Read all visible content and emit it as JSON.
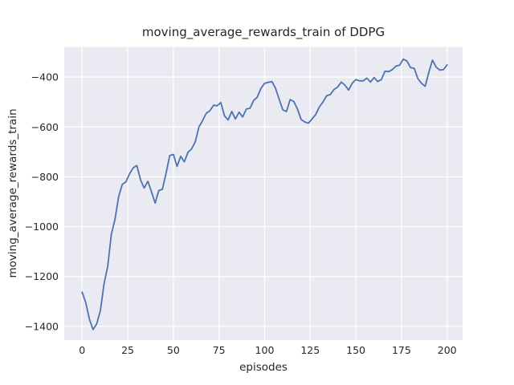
{
  "figure": {
    "title": "moving_average_rewards_train of DDPG",
    "xlabel": "episodes",
    "ylabel": "moving_average_rewards_train"
  },
  "chart_data": {
    "type": "line",
    "title": "moving_average_rewards_train of DDPG",
    "xlabel": "episodes",
    "ylabel": "moving_average_rewards_train",
    "grid": true,
    "legend_position": "none",
    "line_color": "#4c72b0",
    "plot_background": "#eaeaf2",
    "grid_color": "#ffffff",
    "text_color": "#262626",
    "xlim": [
      -9.8,
      208.5
    ],
    "ylim": [
      -1455,
      -279
    ],
    "x_ticks": [
      0,
      25,
      50,
      75,
      100,
      125,
      150,
      175,
      200
    ],
    "x_tick_labels": [
      "0",
      "25",
      "50",
      "75",
      "100",
      "125",
      "150",
      "175",
      "200"
    ],
    "y_ticks": [
      -400,
      -600,
      -800,
      -1000,
      -1200,
      -1400
    ],
    "y_tick_labels": [
      "−400",
      "−600",
      "−800",
      "−1000",
      "−1200",
      "−1400"
    ],
    "x": [
      0,
      2,
      4,
      6,
      8,
      10,
      12,
      14,
      16,
      18,
      20,
      22,
      24,
      26,
      28,
      30,
      32,
      34,
      36,
      38,
      40,
      42,
      44,
      46,
      48,
      50,
      52,
      54,
      56,
      58,
      60,
      62,
      64,
      66,
      68,
      70,
      72,
      74,
      76,
      78,
      80,
      82,
      84,
      86,
      88,
      90,
      92,
      94,
      96,
      98,
      100,
      102,
      104,
      106,
      108,
      110,
      112,
      114,
      116,
      118,
      120,
      122,
      124,
      126,
      128,
      130,
      132,
      134,
      136,
      138,
      140,
      142,
      144,
      146,
      148,
      150,
      152,
      154,
      156,
      158,
      160,
      162,
      164,
      166,
      168,
      170,
      172,
      174,
      176,
      178,
      180,
      182,
      184,
      186,
      188,
      190,
      192,
      194,
      196,
      198,
      200
    ],
    "y": [
      -1263,
      -1305,
      -1372,
      -1413,
      -1390,
      -1337,
      -1230,
      -1160,
      -1032,
      -970,
      -880,
      -830,
      -820,
      -788,
      -764,
      -755,
      -812,
      -845,
      -818,
      -860,
      -905,
      -855,
      -850,
      -785,
      -715,
      -710,
      -758,
      -718,
      -740,
      -702,
      -688,
      -660,
      -600,
      -575,
      -545,
      -535,
      -513,
      -515,
      -502,
      -555,
      -572,
      -538,
      -568,
      -541,
      -560,
      -528,
      -525,
      -494,
      -480,
      -445,
      -425,
      -421,
      -418,
      -445,
      -490,
      -532,
      -538,
      -490,
      -498,
      -528,
      -570,
      -580,
      -585,
      -568,
      -550,
      -520,
      -500,
      -475,
      -470,
      -450,
      -440,
      -420,
      -432,
      -452,
      -425,
      -410,
      -415,
      -415,
      -404,
      -420,
      -402,
      -418,
      -410,
      -376,
      -378,
      -370,
      -356,
      -352,
      -328,
      -336,
      -362,
      -365,
      -406,
      -425,
      -437,
      -380,
      -332,
      -360,
      -372,
      -370,
      -351
    ]
  }
}
